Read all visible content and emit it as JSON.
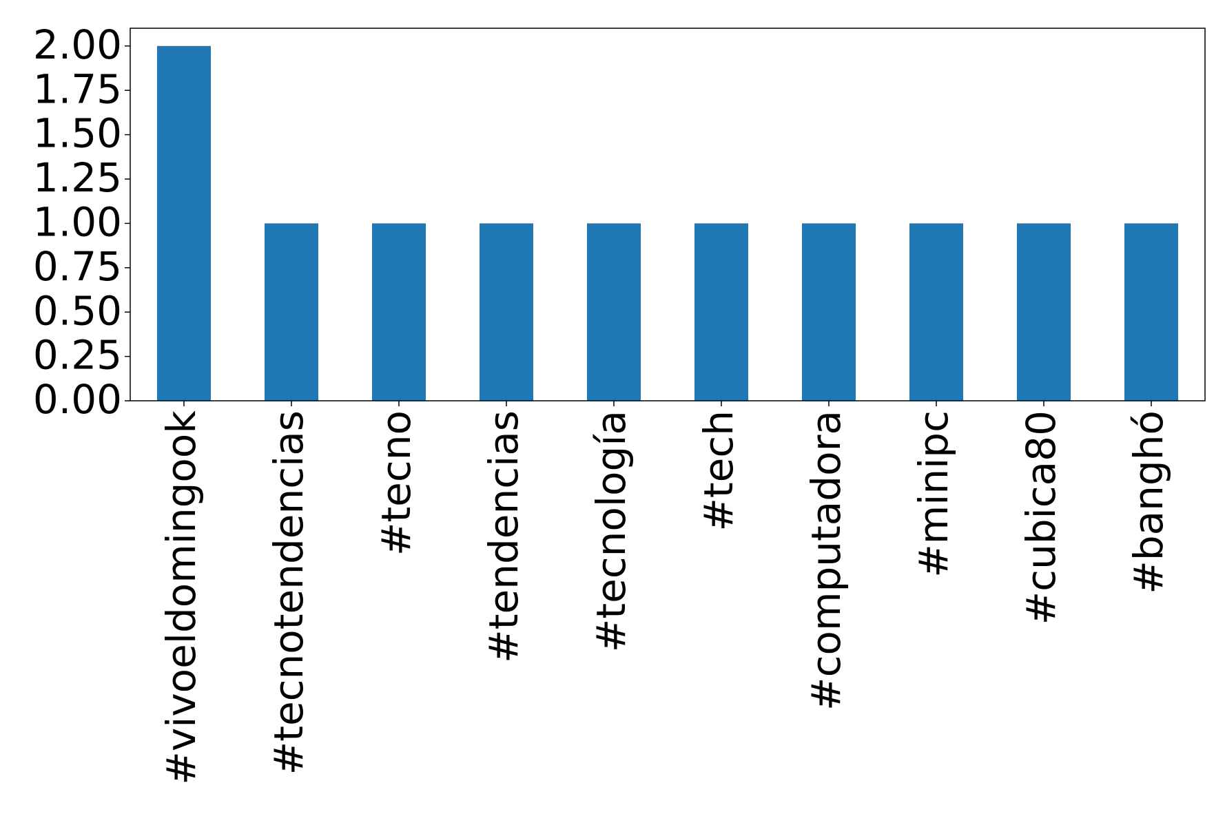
{
  "chart_data": {
    "type": "bar",
    "categories": [
      "#vivoeldomingook",
      "#tecnotendencias",
      "#tecno",
      "#tendencias",
      "#tecnología",
      "#tech",
      "#computadora",
      "#minipc",
      "#cubica80",
      "#banghó"
    ],
    "values": [
      2,
      1,
      1,
      1,
      1,
      1,
      1,
      1,
      1,
      1
    ],
    "color": "#1f77b4",
    "ylim": [
      0,
      2.1
    ],
    "yticks": [
      {
        "value": 0,
        "label": "0.00"
      },
      {
        "value": 0.25,
        "label": "0.25"
      },
      {
        "value": 0.5,
        "label": "0.50"
      },
      {
        "value": 0.75,
        "label": "0.75"
      },
      {
        "value": 1,
        "label": "1.00"
      },
      {
        "value": 1.25,
        "label": "1.25"
      },
      {
        "value": 1.5,
        "label": "1.50"
      },
      {
        "value": 1.75,
        "label": "1.75"
      },
      {
        "value": 2,
        "label": "2.00"
      }
    ],
    "grid": false
  }
}
